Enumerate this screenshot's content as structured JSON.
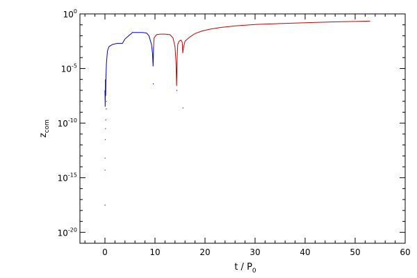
{
  "chart_data": {
    "type": "line",
    "title": "",
    "xlabel": {
      "main": "t / P",
      "sub": "0"
    },
    "ylabel": {
      "main": "z",
      "sub": "com"
    },
    "xlim": [
      -5,
      60
    ],
    "ylim_log10": [
      -21,
      0
    ],
    "yscale": "log",
    "grid": false,
    "legend": "none",
    "x_ticks": [
      0,
      10,
      20,
      30,
      40,
      50,
      60
    ],
    "x_tick_labels": [
      "0",
      "10",
      "20",
      "30",
      "40",
      "50",
      "60"
    ],
    "y_ticks_log10": [
      -20,
      -15,
      -10,
      -5,
      0
    ],
    "y_tick_labels": [
      {
        "base": "10",
        "exp": "-20"
      },
      {
        "base": "10",
        "exp": "-15"
      },
      {
        "base": "10",
        "exp": "-10"
      },
      {
        "base": "10",
        "exp": "-5"
      },
      {
        "base": "10",
        "exp": "0"
      }
    ],
    "colors": {
      "axes": "#000000",
      "blue": "#0000c8",
      "red": "#c80000"
    },
    "series": [
      {
        "color": "blue",
        "points_log10": [
          [
            0.0,
            -7.0
          ],
          [
            0.05,
            -8.5
          ],
          [
            0.1,
            -6.0
          ],
          [
            0.15,
            -7.5
          ],
          [
            0.2,
            -5.8
          ],
          [
            0.3,
            -4.5
          ],
          [
            0.5,
            -3.4
          ],
          [
            0.8,
            -3.0
          ],
          [
            1.5,
            -2.8
          ],
          [
            2.5,
            -2.7
          ],
          [
            3.5,
            -2.7
          ],
          [
            4.0,
            -2.3
          ],
          [
            4.5,
            -2.1
          ],
          [
            5.0,
            -1.9
          ],
          [
            5.5,
            -1.7
          ],
          [
            6.5,
            -1.7
          ],
          [
            7.5,
            -1.7
          ],
          [
            8.3,
            -1.75
          ],
          [
            8.8,
            -2.0
          ],
          [
            9.3,
            -2.8
          ],
          [
            9.5,
            -3.6
          ],
          [
            9.62,
            -4.8
          ],
          [
            9.72,
            -3.0
          ]
        ]
      },
      {
        "color": "red",
        "points_log10": [
          [
            9.72,
            -3.0
          ],
          [
            9.82,
            -2.2
          ],
          [
            10.3,
            -1.9
          ],
          [
            11.0,
            -1.85
          ],
          [
            12.0,
            -1.85
          ],
          [
            13.0,
            -1.9
          ],
          [
            13.6,
            -2.2
          ],
          [
            14.0,
            -3.0
          ],
          [
            14.2,
            -4.4
          ],
          [
            14.32,
            -6.6
          ],
          [
            14.44,
            -4.0
          ],
          [
            14.55,
            -2.8
          ],
          [
            14.8,
            -2.5
          ],
          [
            15.2,
            -2.4
          ],
          [
            15.45,
            -2.6
          ],
          [
            15.55,
            -3.6
          ],
          [
            15.65,
            -3.2
          ],
          [
            16.0,
            -2.5
          ],
          [
            17.0,
            -2.1
          ],
          [
            18.0,
            -1.8
          ],
          [
            19.5,
            -1.55
          ],
          [
            21.0,
            -1.4
          ],
          [
            23.0,
            -1.25
          ],
          [
            26.0,
            -1.1
          ],
          [
            30.0,
            -0.97
          ],
          [
            35.0,
            -0.88
          ],
          [
            40.0,
            -0.81
          ],
          [
            45.0,
            -0.74
          ],
          [
            50.0,
            -0.69
          ],
          [
            53.0,
            -0.66
          ]
        ]
      }
    ],
    "scatter_points_log10": [
      {
        "x": 0.0,
        "y": -13.2,
        "color": "red"
      },
      {
        "x": 0.0,
        "y": -14.3,
        "color": "red"
      },
      {
        "x": 0.0,
        "y": -17.5,
        "color": "blue"
      },
      {
        "x": 0.05,
        "y": -11.5,
        "color": "red"
      },
      {
        "x": 0.1,
        "y": -10.5,
        "color": "red"
      },
      {
        "x": 0.15,
        "y": -9.7,
        "color": "red"
      },
      {
        "x": 0.25,
        "y": -8.7,
        "color": "blue"
      },
      {
        "x": 0.3,
        "y": -8.0,
        "color": "red"
      },
      {
        "x": 9.65,
        "y": -6.4,
        "color": "blue"
      },
      {
        "x": 14.35,
        "y": -7.0,
        "color": "blue"
      },
      {
        "x": 15.6,
        "y": -8.6,
        "color": "red"
      }
    ]
  }
}
